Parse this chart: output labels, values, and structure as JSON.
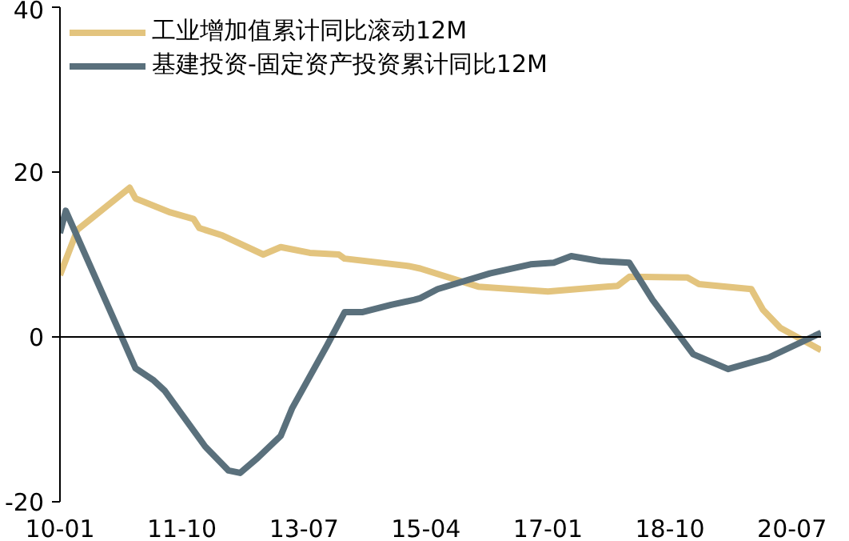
{
  "chart_data": {
    "type": "line",
    "series": [
      {
        "name": "工业增加值累计同比滚动12M",
        "color": "#e3c47e",
        "x": [
          "2010-01",
          "2010-04",
          "2011-01",
          "2011-02",
          "2011-08",
          "2011-12",
          "2012-01",
          "2012-05",
          "2012-12",
          "2013-03",
          "2013-08",
          "2014-01",
          "2014-02",
          "2015-01",
          "2015-03",
          "2016-01",
          "2017-01",
          "2018-01",
          "2018-03",
          "2019-01",
          "2019-03",
          "2019-12",
          "2020-02",
          "2020-05",
          "2020-12"
        ],
        "values": [
          7.5,
          13.0,
          18.1,
          16.8,
          15.1,
          14.3,
          13.2,
          12.3,
          10.0,
          10.9,
          10.2,
          10.0,
          9.5,
          8.6,
          8.3,
          6.1,
          5.5,
          6.2,
          7.3,
          7.2,
          6.4,
          5.8,
          3.3,
          1.1,
          -1.6
        ]
      },
      {
        "name": "基建投资-固定资产投资累计同比12M",
        "color": "#5a707c",
        "x": [
          "2010-01",
          "2010-02",
          "2010-12",
          "2011-02",
          "2011-05",
          "2011-07",
          "2012-02",
          "2012-06",
          "2012-08",
          "2012-11",
          "2013-03",
          "2013-05",
          "2013-11",
          "2014-02",
          "2014-05",
          "2014-10",
          "2015-02",
          "2015-03",
          "2015-06",
          "2016-03",
          "2016-10",
          "2017-02",
          "2017-05",
          "2017-10",
          "2018-03",
          "2018-07",
          "2019-02",
          "2019-08",
          "2020-03",
          "2020-12"
        ],
        "values": [
          12.6,
          15.3,
          -0.6,
          -3.8,
          -5.2,
          -6.5,
          -13.3,
          -16.2,
          -16.5,
          -14.7,
          -12.0,
          -8.6,
          -1.0,
          3.0,
          3.0,
          3.9,
          4.5,
          4.7,
          5.8,
          7.7,
          8.8,
          9.0,
          9.8,
          9.2,
          9.0,
          4.5,
          -2.1,
          -3.9,
          -2.5,
          0.5
        ]
      }
    ],
    "xlim": [
      "2010-01",
      "2020-12"
    ],
    "xticks": [
      {
        "value": "2010-01",
        "label": "10-01"
      },
      {
        "value": "2011-10",
        "label": "11-10"
      },
      {
        "value": "2013-07",
        "label": "13-07"
      },
      {
        "value": "2015-04",
        "label": "15-04"
      },
      {
        "value": "2017-01",
        "label": "17-01"
      },
      {
        "value": "2018-10",
        "label": "18-10"
      },
      {
        "value": "2020-07",
        "label": "20-07"
      }
    ],
    "ylim": [
      -20,
      40
    ],
    "yticks": [
      -20,
      0,
      20,
      40
    ],
    "ref_lines": [
      {
        "axis": "y",
        "value": 0,
        "color": "#000000",
        "line_style": "solid"
      }
    ],
    "grid": false,
    "legend": "top",
    "marker": "none",
    "line_style": "solid"
  }
}
